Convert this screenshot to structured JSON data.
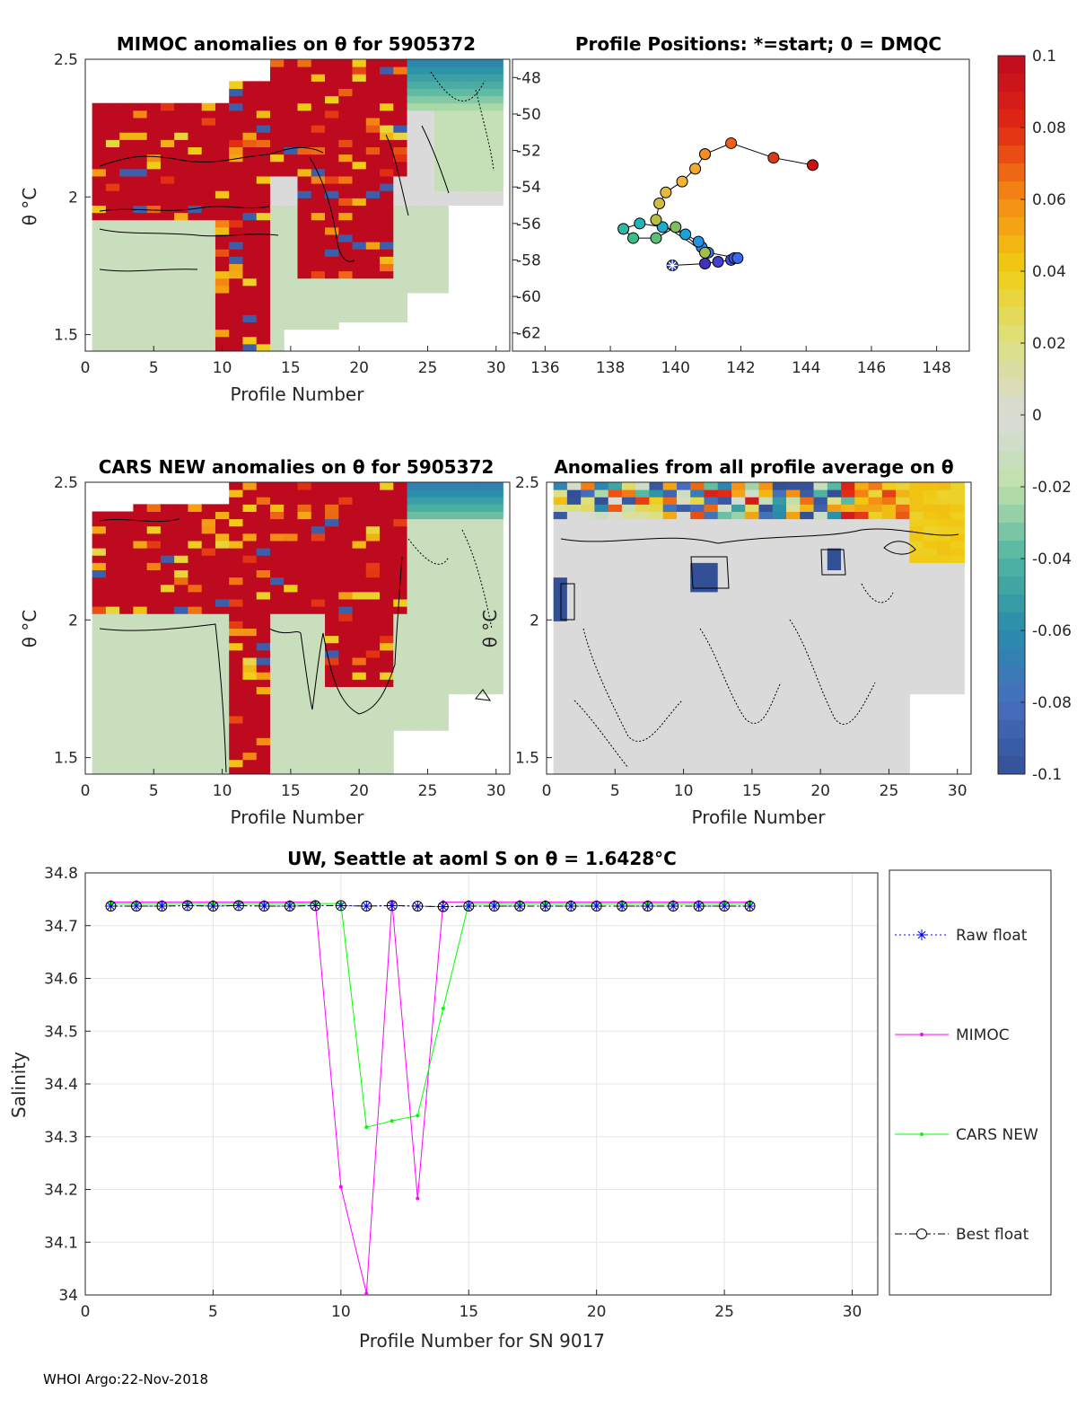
{
  "footer": "WHOI Argo:22-Nov-2018",
  "colors": {
    "raw": "#0000ff",
    "mimoc": "#ff00ff",
    "cars": "#00ff00",
    "best": "#000000",
    "bg_fill": "#d9d9d9"
  },
  "colorbar": {
    "ticks": [
      "0.1",
      "0.08",
      "0.06",
      "0.04",
      "0.02",
      "0",
      "-0.02",
      "-0.04",
      "-0.06",
      "-0.08",
      "-0.1"
    ],
    "range": [
      -0.1,
      0.1
    ]
  },
  "chart_data": [
    {
      "id": "mimoc",
      "type": "heatmap",
      "title": "MIMOC anomalies on θ  for 5905372",
      "xlabel": "Profile Number",
      "ylabel": "θ °C",
      "xlim": [
        0,
        31
      ],
      "ylim": [
        1.44,
        2.5
      ],
      "xticks": [
        "0",
        "5",
        "10",
        "15",
        "20",
        "25",
        "30"
      ],
      "yticks": [
        "1.5",
        "2",
        "2.5"
      ],
      "profiles": 30
    },
    {
      "id": "positions",
      "type": "scatter",
      "title": "Profile Positions: *=start; 0 = DMQC",
      "xlim": [
        135,
        149
      ],
      "ylim": [
        -63,
        -47
      ],
      "xticks": [
        "136",
        "138",
        "140",
        "142",
        "144",
        "146",
        "148"
      ],
      "yticks": [
        "-48",
        "-50",
        "-52",
        "-54",
        "-56",
        "-58",
        "-60",
        "-62"
      ],
      "lon": [
        139.9,
        140.9,
        141.3,
        141.7,
        141.8,
        141.9,
        141.0,
        140.8,
        140.7,
        140.3,
        139.6,
        138.9,
        138.4,
        138.7,
        139.4,
        140.0,
        140.9,
        139.4,
        139.5,
        139.7,
        140.2,
        140.6,
        140.9,
        140.9,
        141.7,
        143.0,
        144.2
      ],
      "lat": [
        -58.3,
        -58.2,
        -58.1,
        -58.0,
        -57.9,
        -57.9,
        -57.6,
        -57.3,
        -57.0,
        -56.6,
        -56.2,
        -56.0,
        -56.3,
        -56.8,
        -56.8,
        -56.2,
        -57.6,
        -55.8,
        -54.9,
        -54.3,
        -53.7,
        -53.0,
        -52.2,
        -52.2,
        -51.6,
        -52.4,
        -52.8
      ]
    },
    {
      "id": "cars",
      "type": "heatmap",
      "title": "CARS NEW anomalies on θ for 5905372",
      "xlabel": "Profile Number",
      "ylabel": "θ °C",
      "xlim": [
        0,
        31
      ],
      "ylim": [
        1.44,
        2.5
      ],
      "xticks": [
        "0",
        "5",
        "10",
        "15",
        "20",
        "25",
        "30"
      ],
      "yticks": [
        "1.5",
        "2",
        "2.5"
      ],
      "profiles": 30
    },
    {
      "id": "allavg",
      "type": "heatmap",
      "title": "Anomalies from all profile average on θ",
      "xlabel": "Profile Number",
      "ylabel": "θ °C",
      "xlim": [
        0,
        31
      ],
      "ylim": [
        1.44,
        2.5
      ],
      "xticks": [
        "0",
        "5",
        "10",
        "15",
        "20",
        "25",
        "30"
      ],
      "yticks": [
        "1.5",
        "2",
        "2.5"
      ],
      "profiles": 30
    },
    {
      "id": "salinity",
      "type": "line",
      "title": "UW, Seattle at aoml S on θ = 1.6428°C",
      "xlabel": "Profile Number for SN 9017",
      "ylabel": "Salinity",
      "xlim": [
        0,
        31
      ],
      "ylim": [
        34.0,
        34.8
      ],
      "xticks": [
        "0",
        "5",
        "10",
        "15",
        "20",
        "25",
        "30"
      ],
      "yticks": [
        "34",
        "34.1",
        "34.2",
        "34.3",
        "34.4",
        "34.5",
        "34.6",
        "34.7",
        "34.8"
      ],
      "x": [
        1,
        2,
        3,
        4,
        5,
        6,
        7,
        8,
        9,
        10,
        11,
        12,
        13,
        14,
        15,
        16,
        17,
        18,
        19,
        20,
        21,
        22,
        23,
        24,
        25,
        26
      ],
      "series": [
        {
          "name": "Raw float",
          "values": [
            34.737,
            34.737,
            34.737,
            34.738,
            34.737,
            34.738,
            34.737,
            34.737,
            34.738,
            34.738,
            34.737,
            34.738,
            34.737,
            34.736,
            34.737,
            34.737,
            34.737,
            34.737,
            34.737,
            34.737,
            34.737,
            34.737,
            34.737,
            34.737,
            34.737,
            34.737
          ]
        },
        {
          "name": "MIMOC",
          "values": [
            34.745,
            34.745,
            34.745,
            34.745,
            34.745,
            34.745,
            34.745,
            34.745,
            34.745,
            34.205,
            34.003,
            34.745,
            34.183,
            34.745,
            34.745,
            34.745,
            34.745,
            34.745,
            34.745,
            34.745,
            34.745,
            34.745,
            34.745,
            34.745,
            34.745,
            34.745
          ]
        },
        {
          "name": "CARS NEW",
          "values": [
            34.742,
            34.742,
            34.742,
            34.742,
            34.742,
            34.742,
            34.742,
            34.742,
            34.742,
            34.742,
            34.318,
            34.33,
            34.34,
            34.543,
            34.742,
            34.742,
            34.742,
            34.742,
            34.742,
            34.742,
            34.742,
            34.742,
            34.742,
            34.742,
            34.742,
            34.742
          ]
        },
        {
          "name": "Best float",
          "values": [
            34.737,
            34.737,
            34.737,
            34.738,
            34.737,
            34.738,
            34.737,
            34.737,
            34.738,
            34.738,
            34.737,
            34.738,
            34.737,
            34.736,
            34.737,
            34.737,
            34.737,
            34.737,
            34.737,
            34.737,
            34.737,
            34.737,
            34.737,
            34.737,
            34.737,
            34.737
          ]
        }
      ]
    }
  ]
}
